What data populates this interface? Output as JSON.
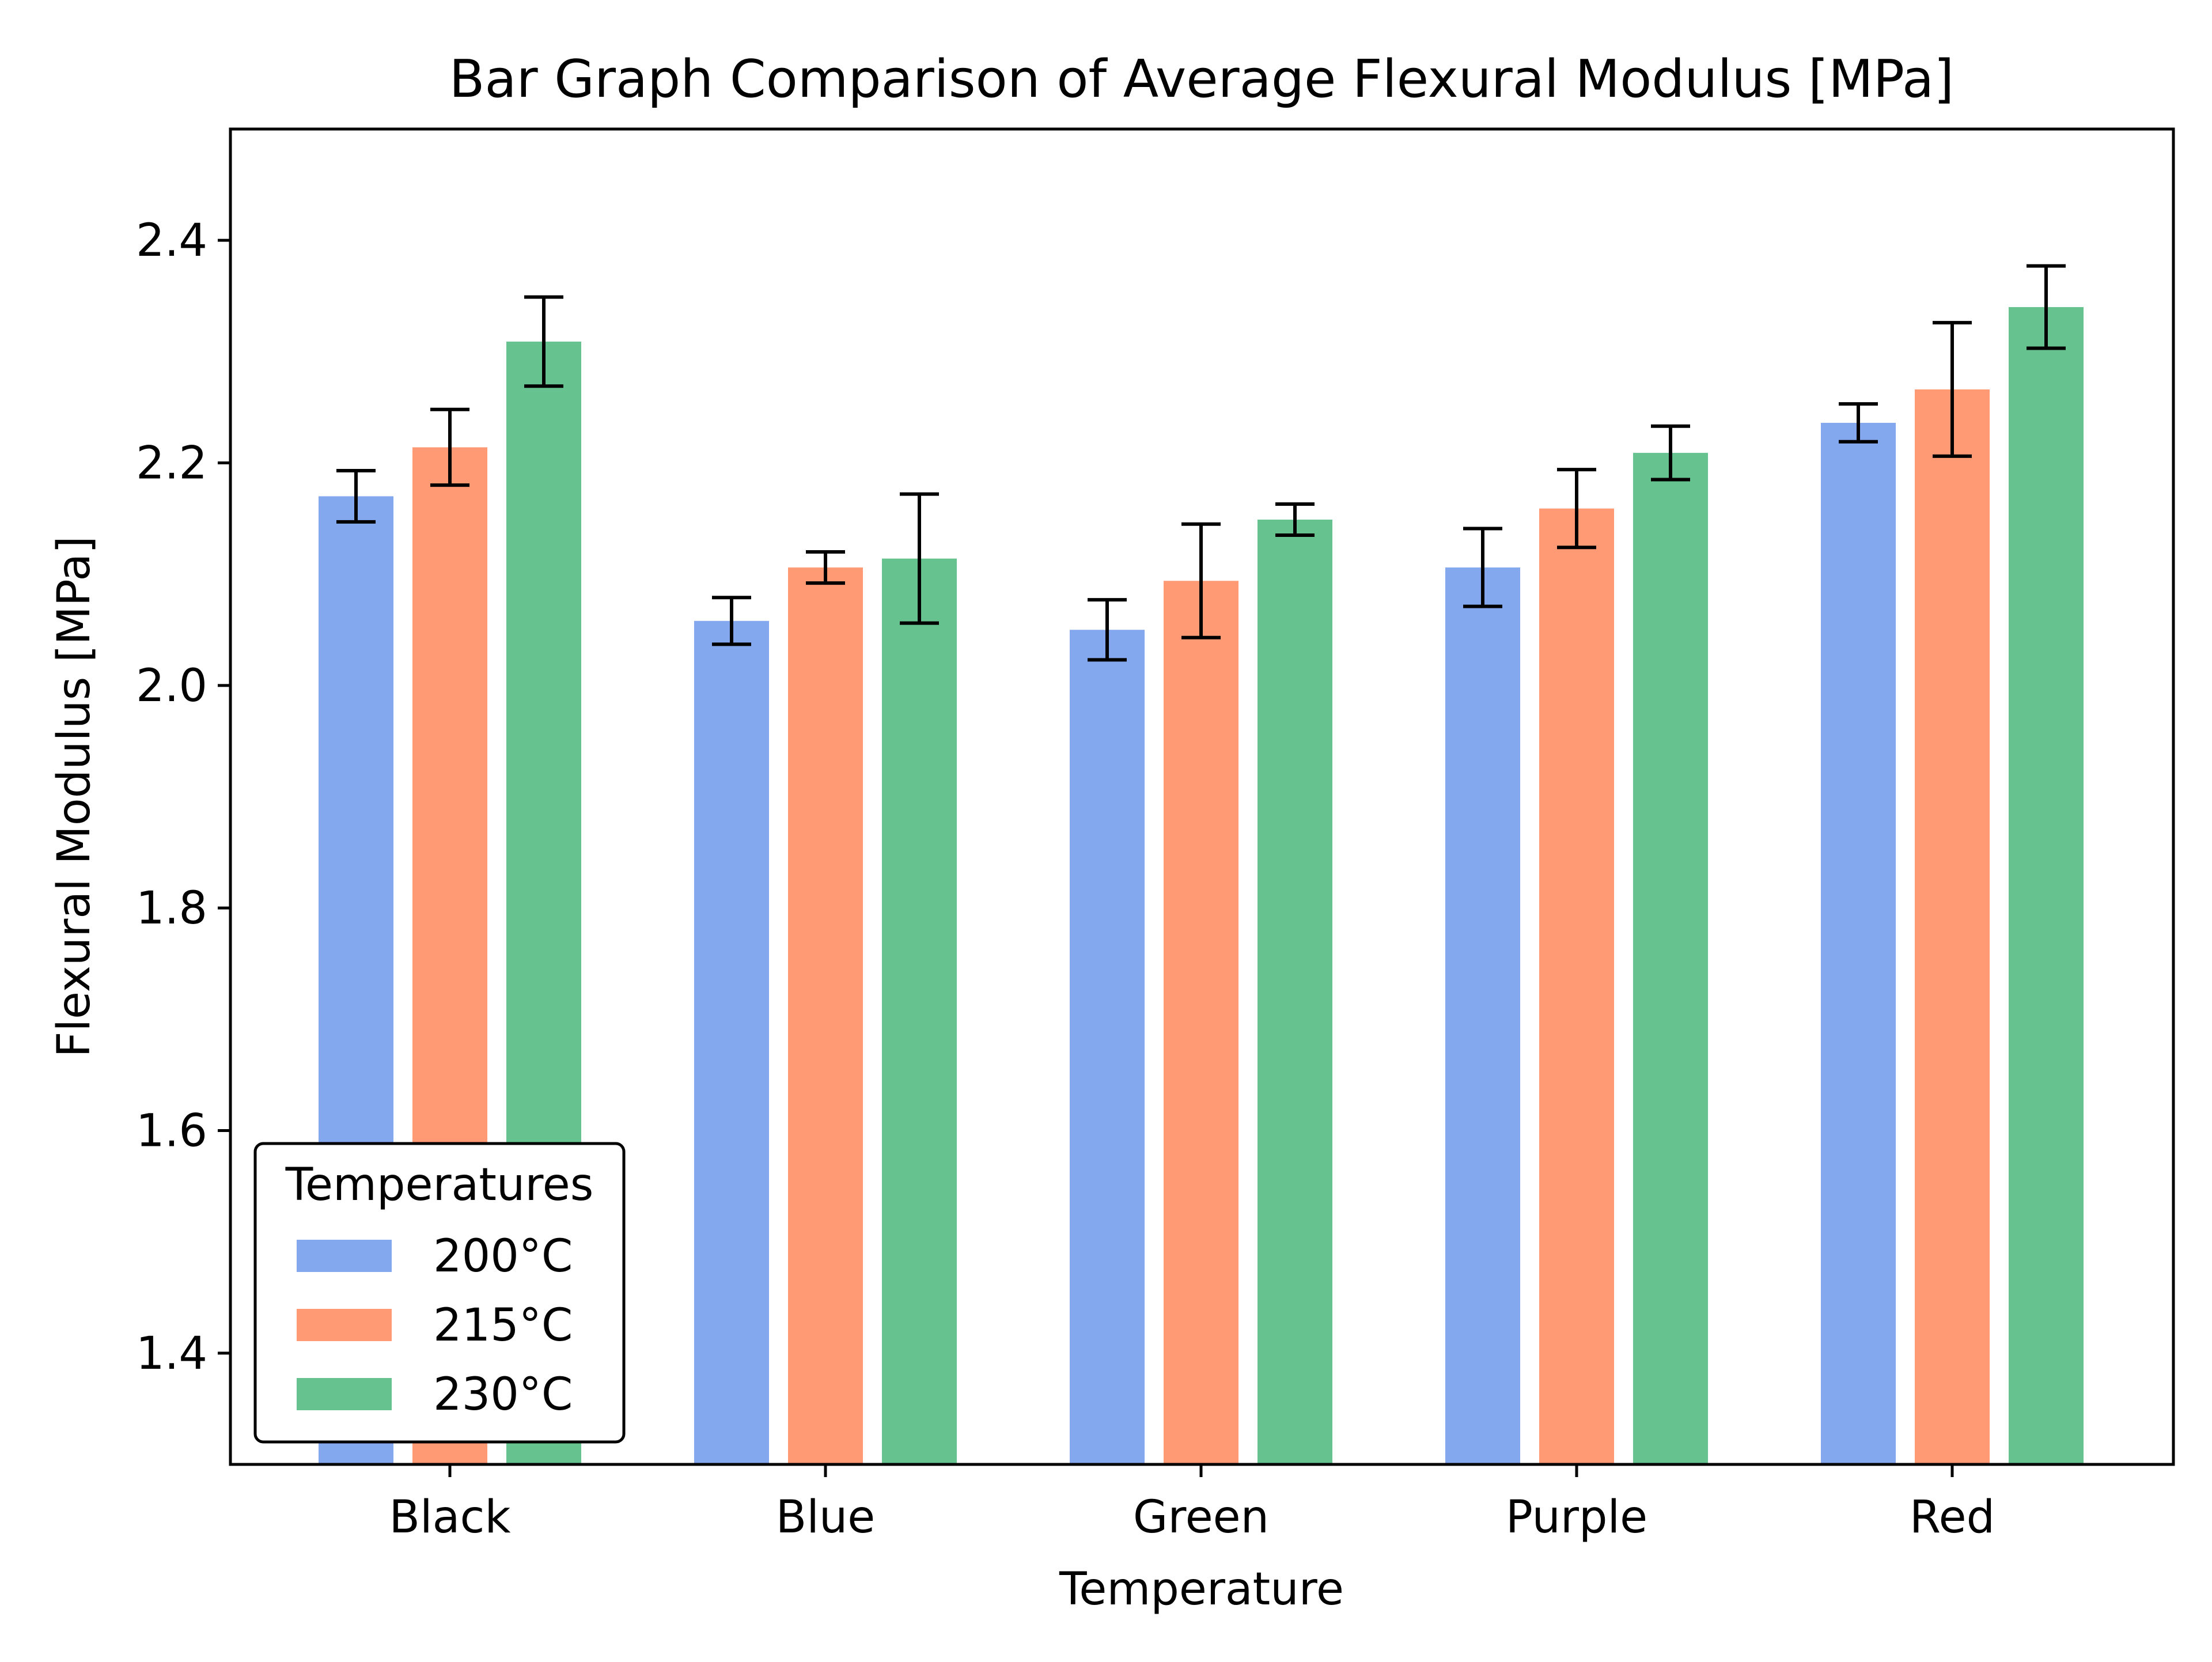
{
  "chart_data": {
    "type": "bar",
    "title": "Bar Graph Comparison of Average Flexural Modulus [MPa]",
    "xlabel": "Temperature",
    "ylabel": "Flexural Modulus [MPa]",
    "categories": [
      "Black",
      "Blue",
      "Green",
      "Purple",
      "Red"
    ],
    "ylim": [
      1.3,
      2.5
    ],
    "yticks": [
      1.4,
      1.6,
      1.8,
      2.0,
      2.2,
      2.4
    ],
    "ytick_labels": [
      "1.4",
      "1.6",
      "1.8",
      "2.0",
      "2.2",
      "2.4"
    ],
    "grid": false,
    "legend": {
      "title": "Temperatures",
      "placement": "lower-left"
    },
    "series": [
      {
        "name": "200°C",
        "color": "#84a8ee",
        "values": [
          2.17,
          2.058,
          2.05,
          2.106,
          2.236
        ],
        "errors": [
          0.023,
          0.021,
          0.027,
          0.035,
          0.017
        ]
      },
      {
        "name": "215°C",
        "color": "#ff9a75",
        "values": [
          2.214,
          2.106,
          2.094,
          2.159,
          2.266
        ],
        "errors": [
          0.034,
          0.014,
          0.051,
          0.035,
          0.06
        ]
      },
      {
        "name": "230°C",
        "color": "#66c38f",
        "values": [
          2.309,
          2.114,
          2.149,
          2.209,
          2.34
        ],
        "errors": [
          0.04,
          0.058,
          0.014,
          0.024,
          0.037
        ]
      }
    ]
  }
}
